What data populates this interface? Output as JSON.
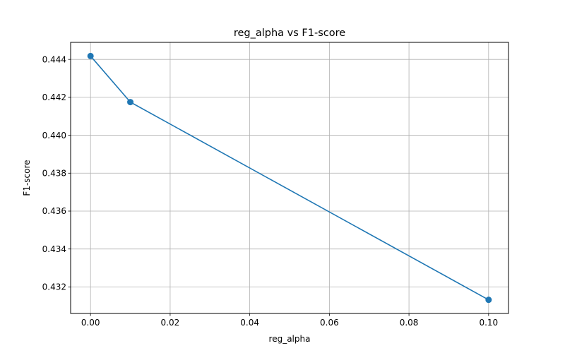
{
  "chart_data": {
    "type": "line",
    "title": "reg_alpha vs F1-score",
    "xlabel": "reg_alpha",
    "ylabel": "F1-score",
    "x": [
      0.0,
      0.01,
      0.1
    ],
    "series": [
      {
        "values": [
          0.44418,
          0.44175,
          0.43132
        ],
        "color": "#1f77b4",
        "marker": "circle"
      }
    ],
    "xlim": [
      -0.005,
      0.105
    ],
    "ylim": [
      0.4306,
      0.4449
    ],
    "xticks": [
      0.0,
      0.02,
      0.04,
      0.06,
      0.08,
      0.1
    ],
    "xtick_labels": [
      "0.00",
      "0.02",
      "0.04",
      "0.06",
      "0.08",
      "0.10"
    ],
    "yticks": [
      0.432,
      0.434,
      0.436,
      0.438,
      0.44,
      0.442,
      0.444
    ],
    "ytick_labels": [
      "0.432",
      "0.434",
      "0.436",
      "0.438",
      "0.440",
      "0.442",
      "0.444"
    ],
    "grid": true,
    "grid_color": "#b0b0b0"
  }
}
